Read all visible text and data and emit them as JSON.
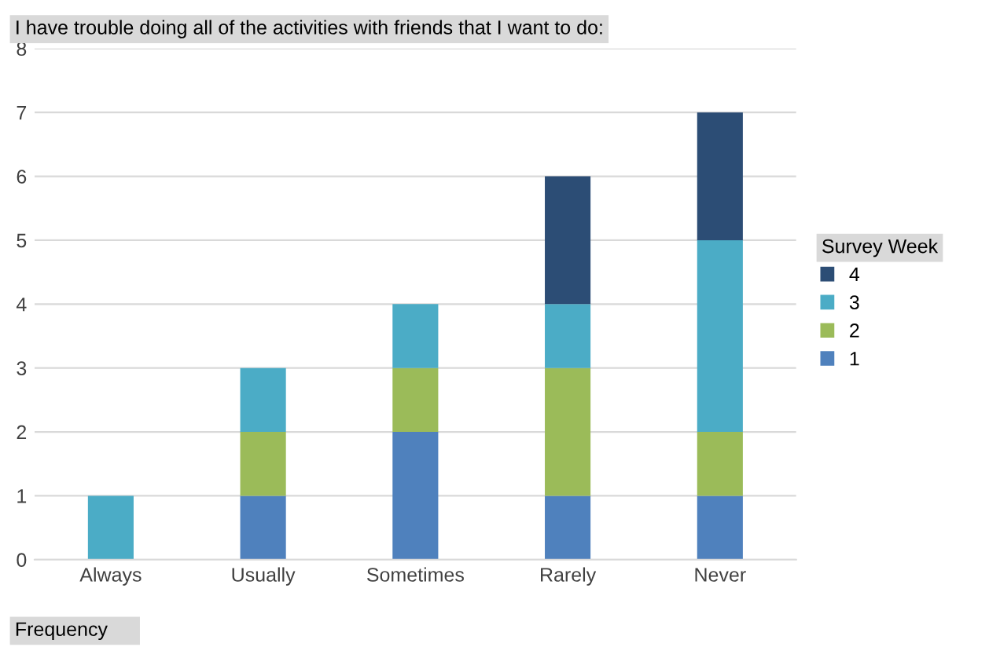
{
  "chart_data": {
    "type": "bar",
    "stacked": true,
    "title": "I have trouble doing all of the activities with friends that I want to do:",
    "xlabel": "Frequency",
    "legend_title": "Survey Week",
    "legend": "right",
    "grid": "y",
    "categories": [
      "Always",
      "Usually",
      "Sometimes",
      "Rarely",
      "Never"
    ],
    "ylim": [
      0,
      8
    ],
    "yticks": [
      0,
      1,
      2,
      3,
      4,
      5,
      6,
      7,
      8
    ],
    "series": [
      {
        "name": "1",
        "color": "#4f81bd",
        "values": [
          null,
          1,
          2,
          1,
          1
        ]
      },
      {
        "name": "2",
        "color": "#9bbb59",
        "values": [
          null,
          1,
          1,
          2,
          1
        ]
      },
      {
        "name": "3",
        "color": "#4bacc6",
        "values": [
          1,
          1,
          1,
          1,
          3
        ]
      },
      {
        "name": "4",
        "color": "#2c4d75",
        "values": [
          null,
          null,
          null,
          2,
          2
        ]
      }
    ]
  }
}
